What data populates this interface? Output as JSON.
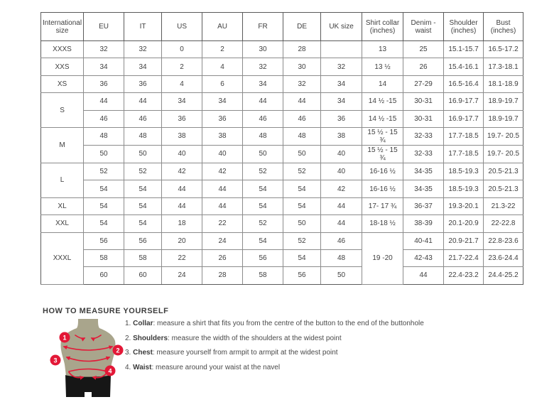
{
  "size_table": {
    "headers": [
      "International size",
      "EU",
      "IT",
      "US",
      "AU",
      "FR",
      "DE",
      "UK size",
      "Shirt collar (inches)",
      "Denim - waist",
      "Shoulder (inches)",
      "Bust (inches)"
    ],
    "rows": [
      {
        "group_start": true,
        "cells": [
          {
            "t": "XXXS"
          },
          {
            "t": "32"
          },
          {
            "t": "32"
          },
          {
            "t": "0"
          },
          {
            "t": "2"
          },
          {
            "t": "30"
          },
          {
            "t": "28"
          },
          {
            "t": ""
          },
          {
            "t": "13"
          },
          {
            "t": "25"
          },
          {
            "t": "15.1-15.7"
          },
          {
            "t": "16.5-17.2"
          }
        ]
      },
      {
        "group_start": true,
        "cells": [
          {
            "t": "XXS"
          },
          {
            "t": "34"
          },
          {
            "t": "34"
          },
          {
            "t": "2"
          },
          {
            "t": "4"
          },
          {
            "t": "32"
          },
          {
            "t": "30"
          },
          {
            "t": "32"
          },
          {
            "t": "13 ½"
          },
          {
            "t": "26"
          },
          {
            "t": "15.4-16.1"
          },
          {
            "t": "17.3-18.1"
          }
        ]
      },
      {
        "group_start": true,
        "cells": [
          {
            "t": "XS"
          },
          {
            "t": "36"
          },
          {
            "t": "36"
          },
          {
            "t": "4"
          },
          {
            "t": "6"
          },
          {
            "t": "34"
          },
          {
            "t": "32"
          },
          {
            "t": "34"
          },
          {
            "t": "14"
          },
          {
            "t": "27-29"
          },
          {
            "t": "16.5-16.4"
          },
          {
            "t": "18.1-18.9"
          }
        ]
      },
      {
        "group_start": true,
        "cells": [
          {
            "t": "S",
            "rowspan": 2
          },
          {
            "t": "44"
          },
          {
            "t": "44"
          },
          {
            "t": "34"
          },
          {
            "t": "34"
          },
          {
            "t": "44"
          },
          {
            "t": "44"
          },
          {
            "t": "34"
          },
          {
            "t": "14 ½ -15"
          },
          {
            "t": "30-31"
          },
          {
            "t": "16.9-17.7"
          },
          {
            "t": "18.9-19.7"
          }
        ]
      },
      {
        "group_start": false,
        "cells": [
          {
            "t": "46"
          },
          {
            "t": "46"
          },
          {
            "t": "36"
          },
          {
            "t": "36"
          },
          {
            "t": "46"
          },
          {
            "t": "46"
          },
          {
            "t": "36"
          },
          {
            "t": "14 ½ -15"
          },
          {
            "t": "30-31"
          },
          {
            "t": "16.9-17.7"
          },
          {
            "t": "18.9-19.7"
          }
        ]
      },
      {
        "group_start": true,
        "cells": [
          {
            "t": "M",
            "rowspan": 2
          },
          {
            "t": "48"
          },
          {
            "t": "48"
          },
          {
            "t": "38"
          },
          {
            "t": "38"
          },
          {
            "t": "48"
          },
          {
            "t": "48"
          },
          {
            "t": "38"
          },
          {
            "t": "15 ½ - 15 ¾"
          },
          {
            "t": "32-33"
          },
          {
            "t": "17.7-18.5"
          },
          {
            "t": "19.7- 20.5"
          }
        ]
      },
      {
        "group_start": false,
        "cells": [
          {
            "t": "50"
          },
          {
            "t": "50"
          },
          {
            "t": "40"
          },
          {
            "t": "40"
          },
          {
            "t": "50"
          },
          {
            "t": "50"
          },
          {
            "t": "40"
          },
          {
            "t": "15 ½ - 15 ¾"
          },
          {
            "t": "32-33"
          },
          {
            "t": "17.7-18.5"
          },
          {
            "t": "19.7- 20.5"
          }
        ]
      },
      {
        "group_start": true,
        "cells": [
          {
            "t": "L",
            "rowspan": 2
          },
          {
            "t": "52"
          },
          {
            "t": "52"
          },
          {
            "t": "42"
          },
          {
            "t": "42"
          },
          {
            "t": "52"
          },
          {
            "t": "52"
          },
          {
            "t": "40"
          },
          {
            "t": "16-16 ½"
          },
          {
            "t": "34-35"
          },
          {
            "t": "18.5-19.3"
          },
          {
            "t": "20.5-21.3"
          }
        ]
      },
      {
        "group_start": false,
        "cells": [
          {
            "t": "54"
          },
          {
            "t": "54"
          },
          {
            "t": "44"
          },
          {
            "t": "44"
          },
          {
            "t": "54"
          },
          {
            "t": "54"
          },
          {
            "t": "42"
          },
          {
            "t": "16-16 ½"
          },
          {
            "t": "34-35"
          },
          {
            "t": "18.5-19.3"
          },
          {
            "t": "20.5-21.3"
          }
        ]
      },
      {
        "group_start": true,
        "cells": [
          {
            "t": "XL"
          },
          {
            "t": "54"
          },
          {
            "t": "54"
          },
          {
            "t": "44"
          },
          {
            "t": "44"
          },
          {
            "t": "54"
          },
          {
            "t": "54"
          },
          {
            "t": "44"
          },
          {
            "t": "17- 17 ¾"
          },
          {
            "t": "36-37"
          },
          {
            "t": "19.3-20.1"
          },
          {
            "t": "21.3-22"
          }
        ]
      },
      {
        "group_start": true,
        "cells": [
          {
            "t": "XXL"
          },
          {
            "t": "54"
          },
          {
            "t": "54"
          },
          {
            "t": "18"
          },
          {
            "t": "22"
          },
          {
            "t": "52"
          },
          {
            "t": "50"
          },
          {
            "t": "44"
          },
          {
            "t": "18-18 ½"
          },
          {
            "t": "38-39"
          },
          {
            "t": "20.1-20.9"
          },
          {
            "t": "22-22.8"
          }
        ]
      },
      {
        "group_start": true,
        "cells": [
          {
            "t": "XXXL",
            "rowspan": 3
          },
          {
            "t": "56"
          },
          {
            "t": "56"
          },
          {
            "t": "20"
          },
          {
            "t": "24"
          },
          {
            "t": "54"
          },
          {
            "t": "52"
          },
          {
            "t": "46"
          },
          {
            "t": "19 -20",
            "rowspan": 3
          },
          {
            "t": "40-41"
          },
          {
            "t": "20.9-21.7"
          },
          {
            "t": "22.8-23.6"
          }
        ]
      },
      {
        "group_start": false,
        "cells": [
          {
            "t": "58"
          },
          {
            "t": "58"
          },
          {
            "t": "22"
          },
          {
            "t": "26"
          },
          {
            "t": "56"
          },
          {
            "t": "54"
          },
          {
            "t": "48"
          },
          {
            "t": "42-43"
          },
          {
            "t": "21.7-22.4"
          },
          {
            "t": "23.6-24.4"
          }
        ]
      },
      {
        "group_start": false,
        "cells": [
          {
            "t": "60"
          },
          {
            "t": "60"
          },
          {
            "t": "24"
          },
          {
            "t": "28"
          },
          {
            "t": "58"
          },
          {
            "t": "56"
          },
          {
            "t": "50"
          },
          {
            "t": "44"
          },
          {
            "t": "22.4-23.2"
          },
          {
            "t": "24.4-25.2"
          }
        ]
      }
    ]
  },
  "measure": {
    "title": "HOW TO MEASURE YOURSELF",
    "instructions": [
      {
        "number": "1.",
        "label": "Collar",
        "text": "measure a shirt that fits you from the centre of the button to the end of the buttonhole"
      },
      {
        "number": "2.",
        "label": "Shoulders",
        "text": "measure the width of the shoulders at the widest point"
      },
      {
        "number": "3.",
        "label": "Chest",
        "text": "measure yourself from armpit to armpit at the widest point"
      },
      {
        "number": "4.",
        "label": "Waist",
        "text": "measure around your waist at the navel"
      }
    ],
    "figure_markers": [
      "1",
      "2",
      "3",
      "4"
    ],
    "colors": {
      "accent_red": "#e31837",
      "mannequin": "#a9a58c",
      "trousers": "#161616"
    }
  }
}
